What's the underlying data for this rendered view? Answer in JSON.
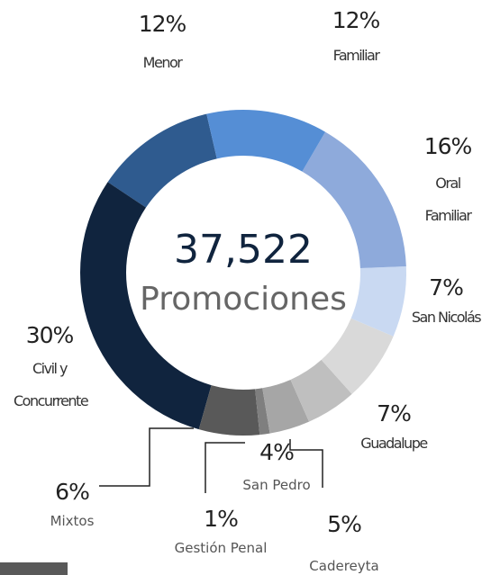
{
  "chart_data": {
    "type": "donut",
    "center_value": "37,522",
    "center_label": "Promociones",
    "categories": [
      "Familiar",
      "Oral Familiar",
      "San Nicolás",
      "Guadalupe",
      "Cadereyta",
      "San Pedro",
      "Gestión Penal",
      "Mixtos",
      "Civil y Concurrente",
      "Menor"
    ],
    "values": [
      12,
      16,
      7,
      7,
      5,
      4,
      1,
      6,
      30,
      12
    ],
    "value_labels": [
      "12%",
      "16%",
      "7%",
      "7%",
      "5%",
      "4%",
      "1%",
      "6%",
      "30%",
      "12%"
    ],
    "colors": [
      "#558ed5",
      "#8eaadb",
      "#c9d9f2",
      "#d9d9d9",
      "#bfbfbf",
      "#a6a6a6",
      "#7f7f7f",
      "#595959",
      "#10243e",
      "#2f5b8f"
    ]
  }
}
